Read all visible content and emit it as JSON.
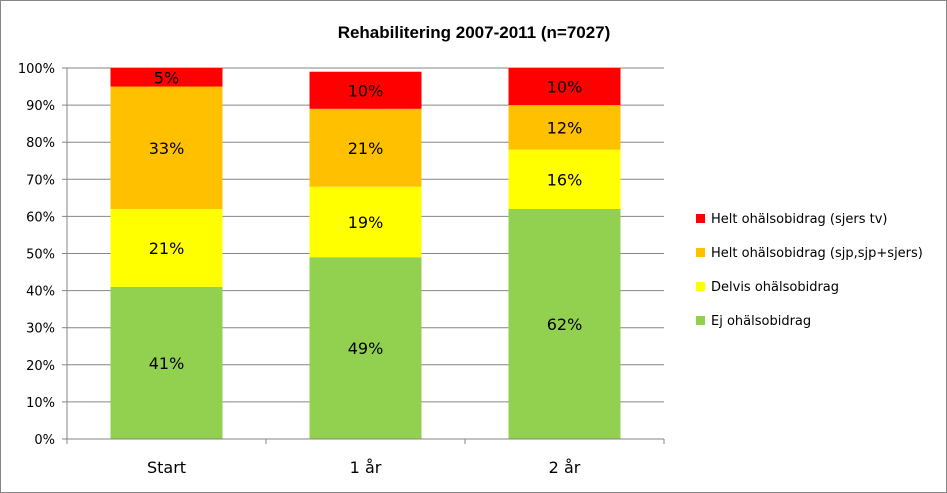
{
  "chart_data": {
    "type": "bar",
    "stacked": true,
    "title": "Rehabilitering 2007-2011 (n=7027)",
    "categories": [
      "Start",
      "1 år",
      "2 år"
    ],
    "ylim": [
      0,
      100
    ],
    "yticks": [
      "0%",
      "10%",
      "20%",
      "30%",
      "40%",
      "50%",
      "60%",
      "70%",
      "80%",
      "90%",
      "100%"
    ],
    "grid": true,
    "legend_position": "right",
    "series": [
      {
        "name": "Ej ohälsobidrag",
        "color": "#92D050",
        "values": [
          41,
          49,
          62
        ],
        "labels": [
          "41%",
          "49%",
          "62%"
        ]
      },
      {
        "name": "Delvis ohälsobidrag",
        "color": "#FFFF00",
        "values": [
          21,
          19,
          16
        ],
        "labels": [
          "21%",
          "19%",
          "16%"
        ]
      },
      {
        "name": "Helt ohälsobidrag (sjp,sjp+sjers)",
        "color": "#FFC000",
        "values": [
          33,
          21,
          12
        ],
        "labels": [
          "33%",
          "21%",
          "12%"
        ]
      },
      {
        "name": "Helt ohälsobidrag (sjers tv)",
        "color": "#FF0000",
        "values": [
          5,
          10,
          10
        ],
        "labels": [
          "5%",
          "10%",
          "10%"
        ]
      }
    ]
  }
}
